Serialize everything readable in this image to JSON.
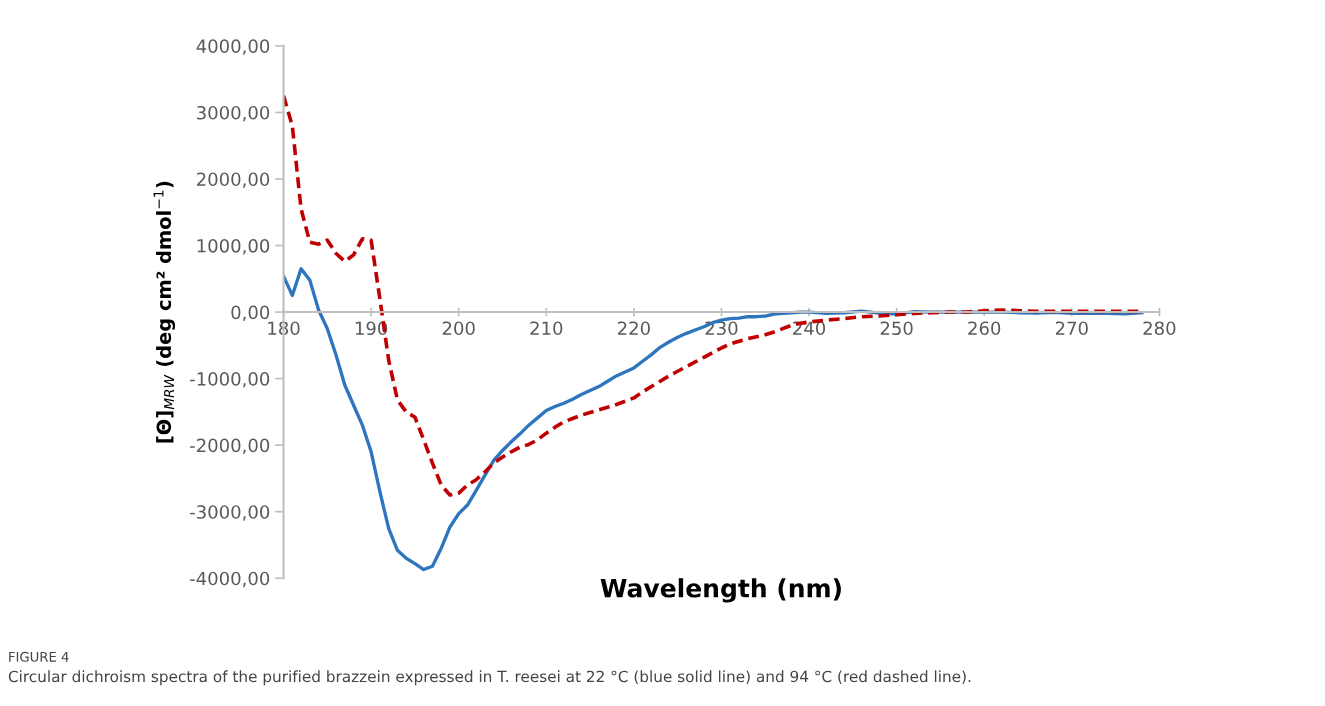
{
  "chart_data": {
    "type": "line",
    "xlabel": "Wavelength (nm)",
    "ylabel": "[Θ]$_{MRW}$ (deg cm² dmol$^{−1}$)",
    "x": [
      180,
      181,
      182,
      183,
      184,
      185,
      186,
      187,
      188,
      189,
      190,
      191,
      192,
      193,
      194,
      195,
      196,
      197,
      198,
      199,
      200,
      201,
      202,
      203,
      204,
      205,
      206,
      207,
      208,
      209,
      210,
      211,
      212,
      213,
      214,
      215,
      216,
      217,
      218,
      219,
      220,
      221,
      222,
      223,
      224,
      225,
      226,
      227,
      228,
      229,
      230,
      231,
      232,
      233,
      234,
      235,
      236,
      237,
      238,
      239,
      240,
      242,
      244,
      246,
      248,
      250,
      252,
      254,
      256,
      258,
      260,
      262,
      264,
      266,
      268,
      270,
      272,
      274,
      276,
      278
    ],
    "series": [
      {
        "color": "#2e75c0",
        "line_style": "solid",
        "values": [
          540,
          250,
          650,
          480,
          30,
          -250,
          -650,
          -1100,
          -1400,
          -1700,
          -2100,
          -2700,
          -3250,
          -3580,
          -3700,
          -3780,
          -3870,
          -3820,
          -3550,
          -3230,
          -3030,
          -2900,
          -2680,
          -2450,
          -2230,
          -2080,
          -1950,
          -1830,
          -1700,
          -1590,
          -1480,
          -1420,
          -1370,
          -1310,
          -1240,
          -1180,
          -1120,
          -1040,
          -960,
          -900,
          -840,
          -740,
          -640,
          -530,
          -450,
          -380,
          -320,
          -270,
          -220,
          -160,
          -120,
          -100,
          -90,
          -70,
          -70,
          -60,
          -30,
          -20,
          -10,
          0,
          0,
          -20,
          -10,
          15,
          -15,
          -30,
          5,
          0,
          0,
          0,
          0,
          0,
          -10,
          -15,
          -5,
          -20,
          -20,
          -20,
          -25,
          -10
        ]
      },
      {
        "color": "#c00000",
        "line_style": "dashed",
        "values": [
          3250,
          2800,
          1550,
          1050,
          1020,
          1080,
          880,
          760,
          860,
          1100,
          1080,
          200,
          -720,
          -1320,
          -1500,
          -1580,
          -1920,
          -2270,
          -2600,
          -2750,
          -2720,
          -2600,
          -2520,
          -2400,
          -2270,
          -2180,
          -2100,
          -2030,
          -1990,
          -1920,
          -1820,
          -1730,
          -1650,
          -1600,
          -1550,
          -1510,
          -1470,
          -1430,
          -1390,
          -1340,
          -1290,
          -1200,
          -1120,
          -1040,
          -960,
          -890,
          -820,
          -750,
          -680,
          -610,
          -540,
          -480,
          -440,
          -400,
          -370,
          -340,
          -300,
          -250,
          -200,
          -170,
          -150,
          -120,
          -100,
          -70,
          -60,
          -40,
          -20,
          -10,
          0,
          0,
          20,
          30,
          20,
          10,
          10,
          10,
          10,
          10,
          10,
          10
        ]
      }
    ],
    "xlim": [
      180,
      280
    ],
    "xticks": [
      180,
      190,
      200,
      210,
      220,
      230,
      240,
      250,
      260,
      270,
      280
    ],
    "ylim": [
      -4000,
      4000
    ],
    "yticks": [
      {
        "value": -4000,
        "label": "-4000,00"
      },
      {
        "value": -3000,
        "label": "-3000,00"
      },
      {
        "value": -2000,
        "label": "-2000,00"
      },
      {
        "value": -1000,
        "label": "-1000,00"
      },
      {
        "value": 0,
        "label": "0,00"
      },
      {
        "value": 1000,
        "label": "1000,00"
      },
      {
        "value": 2000,
        "label": "2000,00"
      },
      {
        "value": 3000,
        "label": "3000,00"
      },
      {
        "value": 4000,
        "label": "4000,00"
      }
    ],
    "grid": false,
    "legend": false,
    "annotations": [
      "FIGURE 4",
      "Circular dichroism spectra of the purified brazzein expressed in T. reesei at 22 °C (blue solid line) and 94 °C (red dashed line)."
    ]
  }
}
